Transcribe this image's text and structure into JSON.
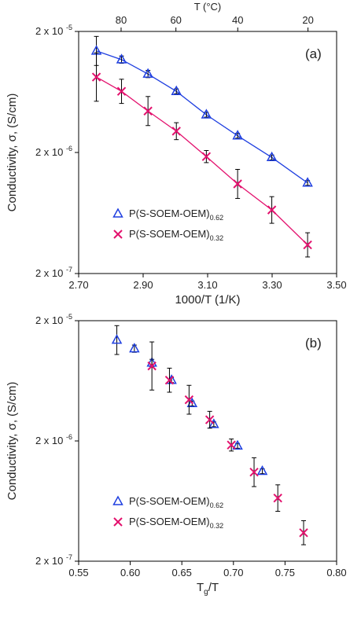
{
  "chart_data": [
    {
      "type": "scatter",
      "panel_label": "(a)",
      "xlabel": "1000/T (1/K)",
      "ylabel": "Conductivity, σ, (S/cm)",
      "top_axis_label": "T (°C)",
      "top_axis_ticks": [
        "80",
        "60",
        "40",
        "20"
      ],
      "top_axis_ticks_celsius": [
        80,
        60,
        40,
        20
      ],
      "xlim": [
        2.7,
        3.5
      ],
      "x_ticks": [
        "2.70",
        "2.90",
        "3.10",
        "3.30",
        "3.50"
      ],
      "y_scale": "log",
      "ylim": [
        2e-07,
        2e-05
      ],
      "y_ticks": [
        {
          "base": "2 x 10",
          "exp": "-5",
          "value": 2e-05
        },
        {
          "base": "2 x 10",
          "exp": "-6",
          "value": 2e-06
        },
        {
          "base": "2 x 10",
          "exp": "-7",
          "value": 2e-07
        }
      ],
      "legend_position": "bottom-left",
      "fit_lines": true,
      "series": [
        {
          "name": "P(S-SOEM-OEM)",
          "name_sub": "0.62",
          "marker": "triangle",
          "color": "#1f3fe0",
          "x": [
            2.755,
            2.833,
            2.915,
            3.003,
            3.096,
            3.193,
            3.299,
            3.41
          ],
          "y": [
            1.38e-05,
            1.17e-05,
            8.9e-06,
            6.4e-06,
            4.1e-06,
            2.75e-06,
            1.82e-06,
            1.12e-06
          ],
          "err": [
            0.12,
            0.03,
            0.03,
            0.02,
            0.02,
            0.02,
            0.02,
            0.02
          ]
        },
        {
          "name": "P(S-SOEM-OEM)",
          "name_sub": "0.32",
          "marker": "x",
          "color": "#e3126e",
          "x": [
            2.755,
            2.833,
            2.915,
            3.003,
            3.096,
            3.193,
            3.299,
            3.41
          ],
          "y": [
            8.4e-06,
            6.4e-06,
            4.4e-06,
            3e-06,
            1.85e-06,
            1.1e-06,
            6.7e-07,
            3.45e-07
          ],
          "err": [
            0.2,
            0.1,
            0.12,
            0.07,
            0.05,
            0.12,
            0.11,
            0.1
          ]
        }
      ]
    },
    {
      "type": "scatter",
      "panel_label": "(b)",
      "xlabel": "T_g/T",
      "xlabel_main": "T",
      "xlabel_sub": "g",
      "xlabel_tail": "/T",
      "ylabel": "Conductivity, σ, (S/cm)",
      "xlim": [
        0.55,
        0.8
      ],
      "x_ticks": [
        "0.55",
        "0.60",
        "0.65",
        "0.70",
        "0.75",
        "0.80"
      ],
      "y_scale": "log",
      "ylim": [
        2e-07,
        2e-05
      ],
      "y_ticks": [
        {
          "base": "2 x 10",
          "exp": "-5",
          "value": 2e-05
        },
        {
          "base": "2 x 10",
          "exp": "-6",
          "value": 2e-06
        },
        {
          "base": "2 x 10",
          "exp": "-7",
          "value": 2e-07
        }
      ],
      "legend_position": "bottom-left",
      "fit_lines": false,
      "series": [
        {
          "name": "P(S-SOEM-OEM)",
          "name_sub": "0.62",
          "marker": "triangle",
          "color": "#1f3fe0",
          "x": [
            0.587,
            0.604,
            0.621,
            0.64,
            0.66,
            0.681,
            0.704,
            0.728
          ],
          "y": [
            1.38e-05,
            1.17e-05,
            8.9e-06,
            6.4e-06,
            4.1e-06,
            2.75e-06,
            1.82e-06,
            1.12e-06
          ],
          "err": [
            0.12,
            0.03,
            0.03,
            0.02,
            0.02,
            0.02,
            0.02,
            0.02
          ]
        },
        {
          "name": "P(S-SOEM-OEM)",
          "name_sub": "0.32",
          "marker": "x",
          "color": "#e3126e",
          "x": [
            0.621,
            0.638,
            0.657,
            0.677,
            0.698,
            0.72,
            0.743,
            0.768
          ],
          "y": [
            8.4e-06,
            6.4e-06,
            4.4e-06,
            3e-06,
            1.85e-06,
            1.1e-06,
            6.7e-07,
            3.45e-07
          ],
          "err": [
            0.2,
            0.1,
            0.12,
            0.07,
            0.05,
            0.12,
            0.11,
            0.1
          ]
        }
      ]
    }
  ]
}
